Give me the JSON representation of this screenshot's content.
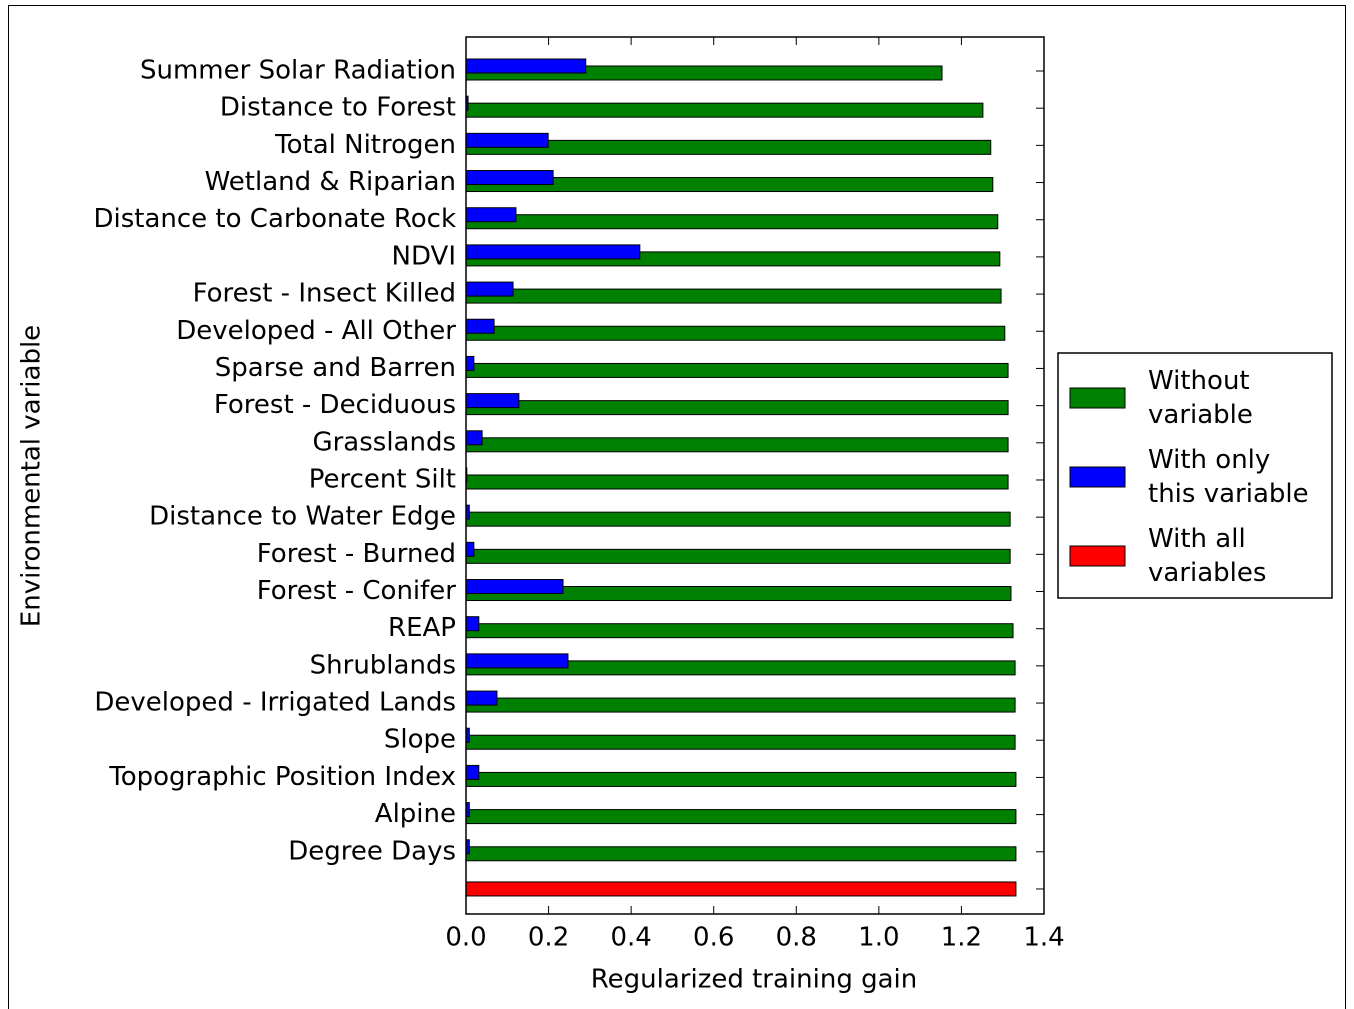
{
  "chart_data": {
    "type": "barh",
    "xlabel": "Regularized training gain",
    "ylabel": "Environmental variable",
    "categories": [
      "Summer Solar Radiation",
      "Distance to Forest",
      "Total Nitrogen",
      "Wetland & Riparian",
      "Distance to Carbonate Rock",
      "NDVI",
      "Forest - Insect Killed",
      "Developed - All Other",
      "Sparse and Barren",
      "Forest - Deciduous",
      "Grasslands",
      "Percent Silt",
      "Distance to Water Edge",
      "Forest - Burned",
      "Forest - Conifer",
      "REAP",
      "Shrublands",
      "Developed - Irrigated Lands",
      "Slope",
      "Topographic Position Index",
      "Alpine",
      "Degree Days",
      null
    ],
    "series": [
      {
        "name": "Without\nvariable",
        "color": "#008000",
        "values": [
          1.153,
          1.252,
          1.271,
          1.276,
          1.288,
          1.293,
          1.296,
          1.305,
          1.313,
          1.313,
          1.313,
          1.313,
          1.318,
          1.318,
          1.32,
          1.325,
          1.33,
          1.33,
          1.33,
          1.332,
          1.332,
          1.332,
          null
        ]
      },
      {
        "name": "With only\nthis variable",
        "color": "#0000ff",
        "values": [
          0.29,
          0.005,
          0.199,
          0.211,
          0.121,
          0.421,
          0.114,
          0.068,
          0.019,
          0.128,
          0.039,
          0.002,
          0.008,
          0.019,
          0.235,
          0.031,
          0.247,
          0.075,
          0.008,
          0.031,
          0.008,
          0.008,
          null
        ]
      },
      {
        "name": "With all\nvariables",
        "color": "#ff0000",
        "values": [
          null,
          null,
          null,
          null,
          null,
          null,
          null,
          null,
          null,
          null,
          null,
          null,
          null,
          null,
          null,
          null,
          null,
          null,
          null,
          null,
          null,
          null,
          1.332
        ]
      }
    ],
    "xlim": [
      0,
      1.4
    ],
    "xticks": [
      {
        "value": 0,
        "label": "0.0"
      },
      0.2,
      0.4,
      0.6,
      0.8,
      {
        "value": 1,
        "label": "1.0"
      },
      1.2,
      1.4
    ],
    "legend": "right"
  }
}
